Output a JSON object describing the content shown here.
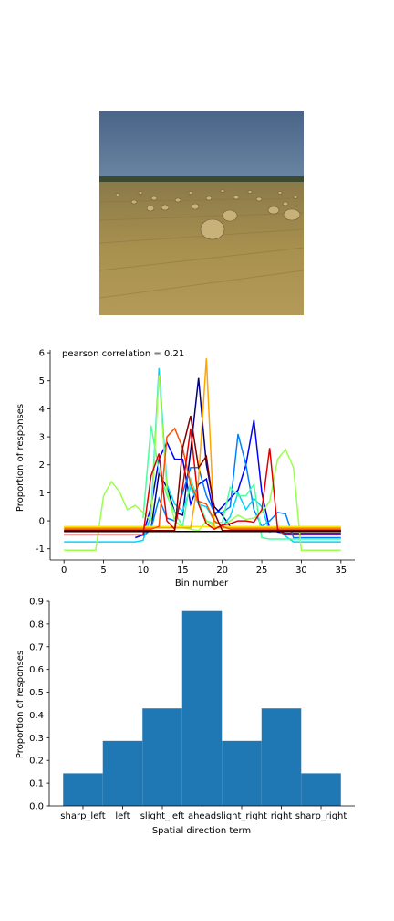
{
  "chart_data": [
    {
      "type": "line",
      "title": "pearson correlation = 0.21",
      "xlabel": "Bin number",
      "ylabel": "Proportion of responses",
      "xlim": [
        -1.75,
        36.75
      ],
      "ylim": [
        -1.4,
        6.1
      ],
      "xticks": [
        0,
        5,
        10,
        15,
        20,
        25,
        30,
        35
      ],
      "yticks": [
        -1,
        0,
        1,
        2,
        3,
        4,
        5,
        6
      ],
      "grid": false,
      "legend": "none",
      "series": [
        {
          "color": "#000080",
          "x": [
            10,
            11,
            12,
            13,
            14,
            15,
            16,
            17,
            18,
            19,
            20,
            21,
            22,
            23,
            24,
            25,
            26,
            27,
            28,
            29,
            30,
            31,
            32,
            33,
            34,
            35
          ],
          "y": [
            -0.5,
            -0.3,
            1.7,
            1.2,
            0.3,
            0.2,
            2.5,
            5.1,
            2.0,
            0.5,
            0.2,
            -0.2,
            -0.35,
            -0.35,
            -0.35,
            -0.35,
            -0.35,
            -0.35,
            -0.35,
            -0.35,
            -0.35,
            -0.35,
            -0.35,
            -0.35,
            -0.35,
            -0.35
          ]
        },
        {
          "color": "#0000ff",
          "x": [
            9,
            10,
            11,
            12,
            13,
            14,
            15,
            16,
            17,
            18,
            19,
            20,
            21,
            22,
            23,
            24,
            25,
            26,
            27,
            28,
            29,
            30,
            31,
            32,
            33,
            34,
            35
          ],
          "y": [
            -0.6,
            -0.5,
            0.5,
            2.2,
            2.8,
            2.2,
            2.2,
            0.6,
            1.3,
            1.5,
            0.2,
            0.5,
            0.8,
            1.1,
            2.0,
            3.6,
            1.0,
            -0.3,
            -0.4,
            -0.45,
            -0.45,
            -0.45,
            -0.45,
            -0.45,
            -0.45,
            -0.45,
            -0.45
          ]
        },
        {
          "color": "#0080ff",
          "x": [
            10,
            11,
            12,
            13,
            14,
            15,
            16,
            17,
            18,
            19,
            20,
            21,
            22,
            23,
            24,
            25,
            26,
            27,
            28,
            29,
            30,
            31,
            32,
            33,
            34,
            35
          ],
          "y": [
            -0.55,
            -0.3,
            0.8,
            0.1,
            0.0,
            1.0,
            1.9,
            1.9,
            0.9,
            0.3,
            0.3,
            0.5,
            3.1,
            2.0,
            0.4,
            -0.2,
            0.0,
            0.3,
            0.25,
            -0.6,
            -0.6,
            -0.6,
            -0.6,
            -0.6,
            -0.6,
            -0.6
          ]
        },
        {
          "color": "#00d4ff",
          "x": [
            0,
            1,
            2,
            3,
            4,
            5,
            6,
            7,
            8,
            9,
            10,
            11,
            12,
            13,
            14,
            15,
            16,
            17,
            18,
            19,
            20,
            21,
            22,
            23,
            24,
            25,
            26,
            27,
            28,
            29,
            30,
            31,
            32,
            33,
            34,
            35
          ],
          "y": [
            -0.75,
            -0.75,
            -0.75,
            -0.75,
            -0.75,
            -0.75,
            -0.75,
            -0.75,
            -0.75,
            -0.75,
            -0.7,
            0.2,
            5.45,
            1.3,
            0.6,
            0.35,
            1.2,
            0.6,
            0.5,
            0.0,
            -0.2,
            0.15,
            1.0,
            0.4,
            0.8,
            0.5,
            -0.4,
            -0.3,
            -0.55,
            -0.75,
            -0.75,
            -0.75,
            -0.75,
            -0.75,
            -0.75,
            -0.75
          ]
        },
        {
          "color": "#4dff9b",
          "x": [
            10,
            11,
            12,
            13,
            14,
            15,
            16,
            17,
            18,
            19,
            20,
            21,
            22,
            23,
            24,
            25,
            26,
            27,
            28,
            29,
            30,
            31,
            32,
            33,
            34,
            35
          ],
          "y": [
            0.1,
            3.4,
            1.8,
            0.9,
            0.3,
            -0.2,
            1.5,
            0.7,
            0.0,
            -0.1,
            -0.05,
            1.2,
            0.9,
            0.9,
            1.3,
            -0.6,
            -0.65,
            -0.65,
            -0.65,
            -0.65,
            -0.65,
            -0.65,
            -0.65,
            -0.65,
            -0.65,
            -0.65
          ]
        },
        {
          "color": "#9bff4d",
          "x": [
            0,
            1,
            2,
            3,
            4,
            5,
            6,
            7,
            8,
            9,
            10,
            11,
            12,
            13,
            14,
            15,
            16,
            17,
            18,
            19,
            20,
            21,
            22,
            23,
            24,
            25,
            26,
            27,
            28,
            29,
            30,
            31,
            32,
            33,
            34,
            35
          ],
          "y": [
            -1.05,
            -1.05,
            -1.05,
            -1.05,
            -1.05,
            0.9,
            1.4,
            1.05,
            0.4,
            0.55,
            0.3,
            0.0,
            5.2,
            1.1,
            0.0,
            -0.25,
            -0.3,
            -0.35,
            0.0,
            -0.2,
            -0.2,
            0.0,
            0.2,
            0.05,
            0.1,
            0.3,
            0.7,
            2.2,
            2.55,
            1.9,
            -1.05,
            -1.05,
            -1.05,
            -1.05,
            -1.05,
            -1.05
          ]
        },
        {
          "color": "#ffe600",
          "x": [
            0,
            1,
            2,
            3,
            4,
            5,
            6,
            7,
            8,
            9,
            10,
            11,
            12,
            13,
            14,
            15,
            16,
            17,
            18,
            19,
            20,
            21,
            22,
            23,
            24,
            25,
            26,
            27,
            28,
            29,
            30,
            31,
            32,
            33,
            34,
            35
          ],
          "y": [
            -0.2,
            -0.2,
            -0.2,
            -0.2,
            -0.2,
            -0.2,
            -0.2,
            -0.2,
            -0.2,
            -0.2,
            -0.2,
            -0.2,
            -0.2,
            -0.2,
            -0.2,
            -0.2,
            -0.2,
            -0.2,
            -0.2,
            -0.2,
            -0.2,
            -0.2,
            -0.2,
            -0.2,
            -0.2,
            -0.2,
            -0.2,
            -0.2,
            -0.2,
            -0.2,
            -0.2,
            -0.2,
            -0.2,
            -0.2,
            -0.2,
            -0.2
          ]
        },
        {
          "color": "#ffa500",
          "x": [
            0,
            1,
            2,
            3,
            4,
            5,
            6,
            7,
            8,
            9,
            10,
            11,
            12,
            13,
            14,
            15,
            16,
            17,
            18,
            19,
            20,
            21,
            22,
            23,
            24,
            25,
            26,
            27,
            28,
            29,
            30,
            31,
            32,
            33,
            34,
            35
          ],
          "y": [
            -0.25,
            -0.25,
            -0.25,
            -0.25,
            -0.25,
            -0.25,
            -0.25,
            -0.25,
            -0.25,
            -0.25,
            -0.25,
            -0.25,
            -0.25,
            -0.25,
            -0.25,
            -0.25,
            -0.25,
            1.5,
            5.8,
            -0.25,
            -0.25,
            -0.25,
            -0.25,
            -0.25,
            -0.25,
            -0.25,
            -0.25,
            -0.25,
            -0.25,
            -0.25,
            -0.25,
            -0.25,
            -0.25,
            -0.25,
            -0.25,
            -0.25
          ]
        },
        {
          "color": "#ff5000",
          "x": [
            0,
            1,
            2,
            3,
            4,
            5,
            6,
            7,
            8,
            9,
            10,
            11,
            12,
            13,
            14,
            15,
            16,
            17,
            18,
            19,
            20,
            21,
            22,
            23,
            24,
            25,
            26,
            27,
            28,
            29,
            30,
            31,
            32,
            33,
            34,
            35
          ],
          "y": [
            -0.3,
            -0.3,
            -0.3,
            -0.3,
            -0.3,
            -0.3,
            -0.3,
            -0.3,
            -0.3,
            -0.3,
            -0.3,
            -0.3,
            -0.2,
            3.0,
            3.3,
            2.6,
            1.3,
            0.7,
            0.6,
            0.0,
            -0.2,
            -0.3,
            -0.3,
            -0.3,
            -0.3,
            -0.3,
            -0.3,
            -0.3,
            -0.3,
            -0.3,
            -0.3,
            -0.3,
            -0.3,
            -0.3,
            -0.3,
            -0.3
          ]
        },
        {
          "color": "#e00000",
          "x": [
            0,
            1,
            2,
            3,
            4,
            5,
            6,
            7,
            8,
            9,
            10,
            11,
            12,
            13,
            14,
            15,
            16,
            17,
            18,
            19,
            20,
            21,
            22,
            23,
            24,
            25,
            26,
            27,
            28,
            29,
            30,
            31,
            32,
            33,
            34,
            35
          ],
          "y": [
            -0.5,
            -0.5,
            -0.5,
            -0.5,
            -0.5,
            -0.5,
            -0.5,
            -0.5,
            -0.5,
            -0.5,
            -0.5,
            1.6,
            2.4,
            0.0,
            -0.3,
            1.2,
            3.3,
            0.6,
            -0.1,
            -0.3,
            -0.15,
            -0.1,
            0.0,
            0.0,
            -0.05,
            0.4,
            2.6,
            -0.3,
            -0.5,
            -0.5,
            -0.5,
            -0.5,
            -0.5,
            -0.5,
            -0.5,
            -0.5
          ]
        },
        {
          "color": "#800000",
          "x": [
            0,
            1,
            2,
            3,
            4,
            5,
            6,
            7,
            8,
            9,
            10,
            11,
            12,
            13,
            14,
            15,
            16,
            17,
            18,
            19,
            20,
            21,
            22,
            23,
            24,
            25,
            26,
            27,
            28,
            29,
            30,
            31,
            32,
            33,
            34,
            35
          ],
          "y": [
            -0.35,
            -0.35,
            -0.35,
            -0.35,
            -0.35,
            -0.35,
            -0.35,
            -0.35,
            -0.35,
            -0.35,
            -0.35,
            -0.35,
            -0.35,
            -0.35,
            -0.35,
            2.6,
            3.75,
            1.9,
            2.3,
            0.3,
            -0.35,
            -0.35,
            -0.35,
            -0.35,
            -0.35,
            -0.35,
            -0.35,
            -0.35,
            -0.35,
            -0.35,
            -0.35,
            -0.35,
            -0.35,
            -0.35,
            -0.35,
            -0.35
          ]
        },
        {
          "color": "#000000",
          "x": [
            0,
            35
          ],
          "y": [
            -0.38,
            -0.38
          ]
        }
      ]
    },
    {
      "type": "bar",
      "title": "",
      "xlabel": "Spatial direction term",
      "ylabel": "Proportion of responses",
      "categories": [
        "sharp_left",
        "left",
        "slight_left",
        "ahead",
        "slight_right",
        "right",
        "sharp_right"
      ],
      "values": [
        0.143,
        0.286,
        0.429,
        0.857,
        0.286,
        0.429,
        0.143
      ],
      "ylim": [
        0,
        0.9
      ],
      "yticks": [
        "0.0",
        "0.1",
        "0.2",
        "0.3",
        "0.4",
        "0.5",
        "0.6",
        "0.7",
        "0.8",
        "0.9"
      ],
      "bar_color": "#1f77b4",
      "grid": false
    }
  ]
}
